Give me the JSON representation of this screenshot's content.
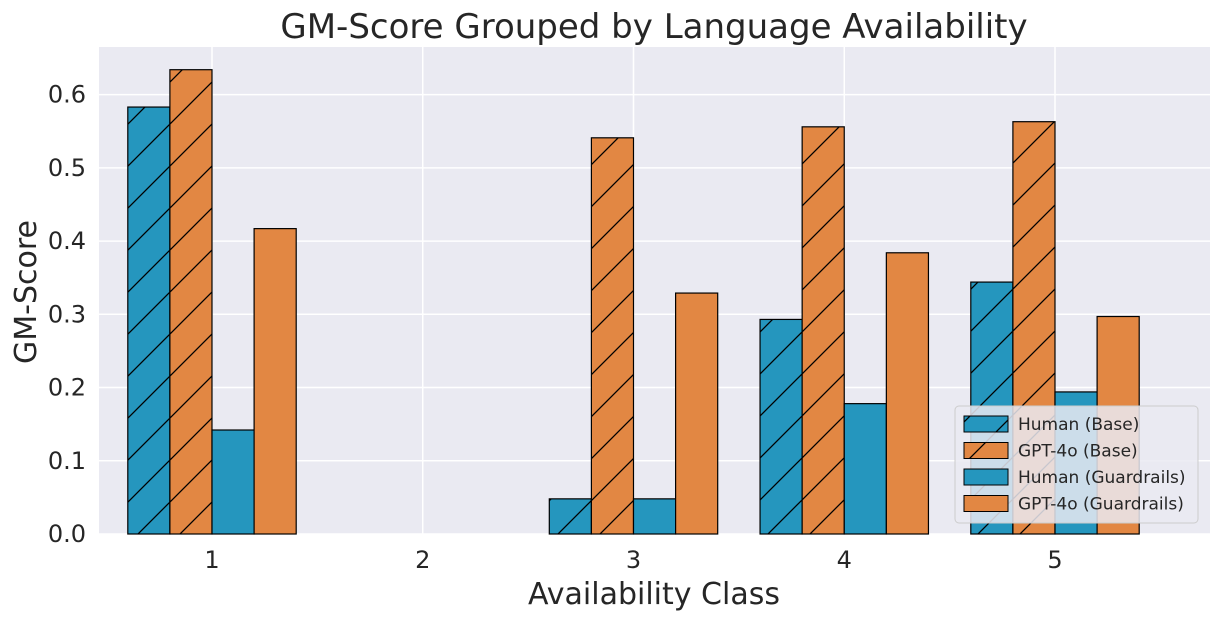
{
  "chart_data": {
    "type": "bar",
    "title": "GM-Score Grouped by Language Availability",
    "xlabel": "Availability Class",
    "ylabel": "GM-Score",
    "categories": [
      "1",
      "2",
      "3",
      "4",
      "5"
    ],
    "ylim": [
      0,
      0.665
    ],
    "yticks": [
      "0.0",
      "0.1",
      "0.2",
      "0.3",
      "0.4",
      "0.5",
      "0.6"
    ],
    "grid": true,
    "legend_position": "bottom-right",
    "series": [
      {
        "name": "Human (Base)",
        "color": "#2596be",
        "hatch": true,
        "values": [
          0.583,
          null,
          0.048,
          0.293,
          0.344
        ]
      },
      {
        "name": "GPT-4o (Base)",
        "color": "#e28743",
        "hatch": true,
        "values": [
          0.634,
          null,
          0.541,
          0.556,
          0.563
        ]
      },
      {
        "name": "Human (Guardrails)",
        "color": "#2596be",
        "hatch": false,
        "values": [
          0.142,
          null,
          0.048,
          0.178,
          0.194
        ]
      },
      {
        "name": "GPT-4o (Guardrails)",
        "color": "#e28743",
        "hatch": false,
        "values": [
          0.417,
          null,
          0.329,
          0.384,
          0.297
        ]
      }
    ]
  }
}
